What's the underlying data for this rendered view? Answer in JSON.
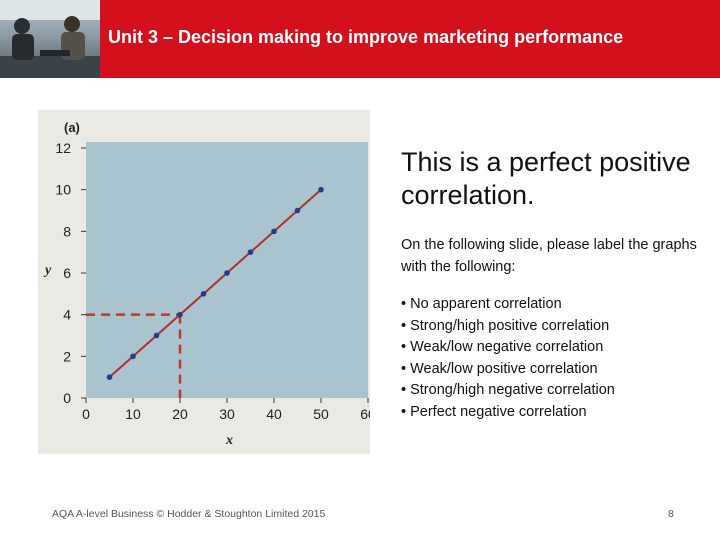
{
  "header": {
    "title": "Unit 3 – Decision making to improve marketing performance",
    "accent_color": "#d4101c",
    "photo_icon": "business-people-photo"
  },
  "chart_data": {
    "type": "line",
    "label": "(a)",
    "xlabel": "x",
    "ylabel": "y",
    "xlim": [
      0,
      60
    ],
    "ylim": [
      0,
      12
    ],
    "xticks": [
      "0",
      "10",
      "20",
      "30",
      "40",
      "50",
      "60"
    ],
    "yticks": [
      "0",
      "2",
      "4",
      "6",
      "8",
      "10",
      "12"
    ],
    "x": [
      5,
      10,
      15,
      20,
      25,
      30,
      35,
      40,
      45,
      50
    ],
    "y": [
      1,
      2,
      3,
      4,
      5,
      6,
      7,
      8,
      9,
      10
    ],
    "highlight": {
      "x": 20,
      "y": 4
    },
    "line_color": "#b0302a",
    "point_color": "#1f3f8a",
    "background_color": "#a9c4cf"
  },
  "content": {
    "main_statement": "This is a perfect positive correlation.",
    "instruction": "On the following slide, please label the graphs with the following:",
    "options": [
      "• No apparent correlation",
      "• Strong/high positive correlation",
      "• Weak/low negative correlation",
      "• Weak/low positive correlation",
      "• Strong/high negative correlation",
      "• Perfect negative correlation"
    ]
  },
  "footer": {
    "copyright": "AQA A-level Business © Hodder & Stoughton Limited 2015",
    "page_number": "8"
  }
}
